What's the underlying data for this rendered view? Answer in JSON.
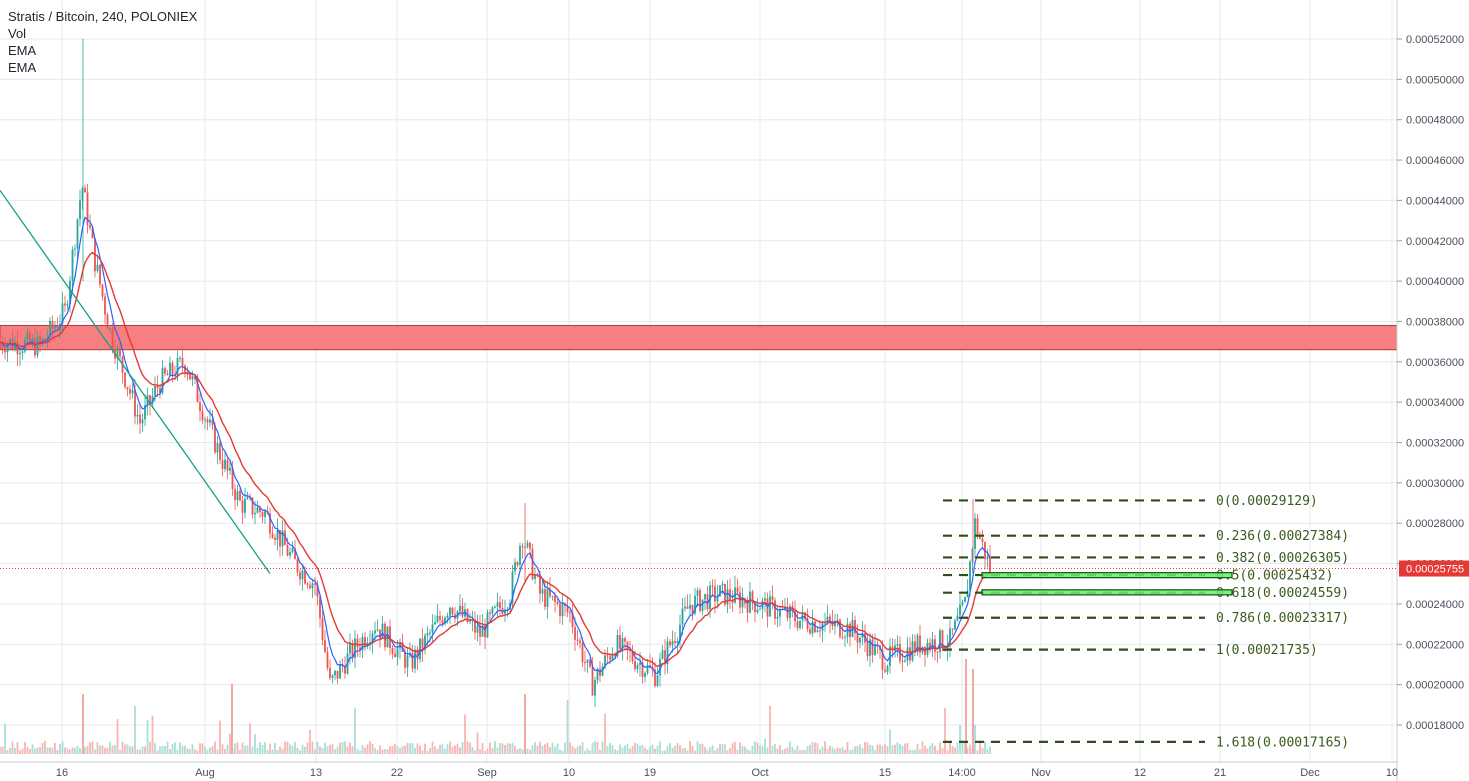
{
  "header": {
    "title": "Stratis / Bitcoin, 240, POLONIEX",
    "indicators": [
      "Vol",
      "EMA",
      "EMA"
    ]
  },
  "current_price": "0.00025755",
  "colors": {
    "up": "#26a69a",
    "down": "#ef5350",
    "ema_fast": "#2962ff",
    "ema_slow": "#e53935",
    "resistance_zone": "#f77f7f",
    "support_box": "#5ef26a",
    "fib_line": "#2f4f1a",
    "trendline": "#17a08a",
    "current_price": "#e53935"
  },
  "chart_data": {
    "type": "candlestick",
    "symbol": "Stratis / Bitcoin",
    "interval": "240",
    "exchange": "POLONIEX",
    "ylim": [
      0.00016,
      0.00054
    ],
    "y_ticks": [
      "0.00018000",
      "0.00020000",
      "0.00022000",
      "0.00024000",
      "0.00026000",
      "0.00028000",
      "0.00030000",
      "0.00032000",
      "0.00034000",
      "0.00036000",
      "0.00038000",
      "0.00040000",
      "0.00042000",
      "0.00044000",
      "0.00046000",
      "0.00048000",
      "0.00050000",
      "0.00052000"
    ],
    "x_ticks": [
      "16",
      "Aug",
      "13",
      "22",
      "Sep",
      "10",
      "19",
      "Oct",
      "15",
      "14:00",
      "Nov",
      "12",
      "21",
      "Dec",
      "10"
    ],
    "price_path": [
      {
        "t": 0,
        "p": 0.00037
      },
      {
        "t": 40,
        "p": 0.000368
      },
      {
        "t": 65,
        "p": 0.000385
      },
      {
        "t": 82,
        "p": 0.000448
      },
      {
        "t": 95,
        "p": 0.00041
      },
      {
        "t": 110,
        "p": 0.000375
      },
      {
        "t": 140,
        "p": 0.00033
      },
      {
        "t": 160,
        "p": 0.00035
      },
      {
        "t": 185,
        "p": 0.00036
      },
      {
        "t": 215,
        "p": 0.00032
      },
      {
        "t": 240,
        "p": 0.00029
      },
      {
        "t": 265,
        "p": 0.000285
      },
      {
        "t": 295,
        "p": 0.00026
      },
      {
        "t": 315,
        "p": 0.00025
      },
      {
        "t": 330,
        "p": 0.0002
      },
      {
        "t": 350,
        "p": 0.000215
      },
      {
        "t": 375,
        "p": 0.00023
      },
      {
        "t": 410,
        "p": 0.00021
      },
      {
        "t": 450,
        "p": 0.00024
      },
      {
        "t": 480,
        "p": 0.000225
      },
      {
        "t": 510,
        "p": 0.000245
      },
      {
        "t": 522,
        "p": 0.000275
      },
      {
        "t": 540,
        "p": 0.000245
      },
      {
        "t": 570,
        "p": 0.000235
      },
      {
        "t": 592,
        "p": 0.0002
      },
      {
        "t": 615,
        "p": 0.00022
      },
      {
        "t": 655,
        "p": 0.000205
      },
      {
        "t": 690,
        "p": 0.00024
      },
      {
        "t": 720,
        "p": 0.000245
      },
      {
        "t": 760,
        "p": 0.00024
      },
      {
        "t": 800,
        "p": 0.000232
      },
      {
        "t": 850,
        "p": 0.000228
      },
      {
        "t": 885,
        "p": 0.000212
      },
      {
        "t": 920,
        "p": 0.00022
      },
      {
        "t": 950,
        "p": 0.000222
      },
      {
        "t": 965,
        "p": 0.00024
      },
      {
        "t": 975,
        "p": 0.00028
      },
      {
        "t": 990,
        "p": 0.0002575
      }
    ],
    "resistance_zone": [
      0.000366,
      0.000378
    ],
    "trendline": {
      "from": {
        "t": 0,
        "p": 0.000445
      },
      "to": {
        "t": 270,
        "p": 0.000255
      }
    },
    "fibonacci": [
      {
        "level": "0",
        "price": "0.00029129"
      },
      {
        "level": "0.236",
        "price": "0.00027384"
      },
      {
        "level": "0.382",
        "price": "0.00026305"
      },
      {
        "level": "0.5",
        "price": "0.00025432"
      },
      {
        "level": "0.618",
        "price": "0.00024559"
      },
      {
        "level": "0.786",
        "price": "0.00023317"
      },
      {
        "level": "1",
        "price": "0.00021735"
      },
      {
        "level": "1.618",
        "price": "0.00017165"
      }
    ],
    "support_boxes": [
      {
        "low": 0.000253,
        "high": 0.0002555
      },
      {
        "low": 0.0002445,
        "high": 0.000247
      }
    ]
  }
}
